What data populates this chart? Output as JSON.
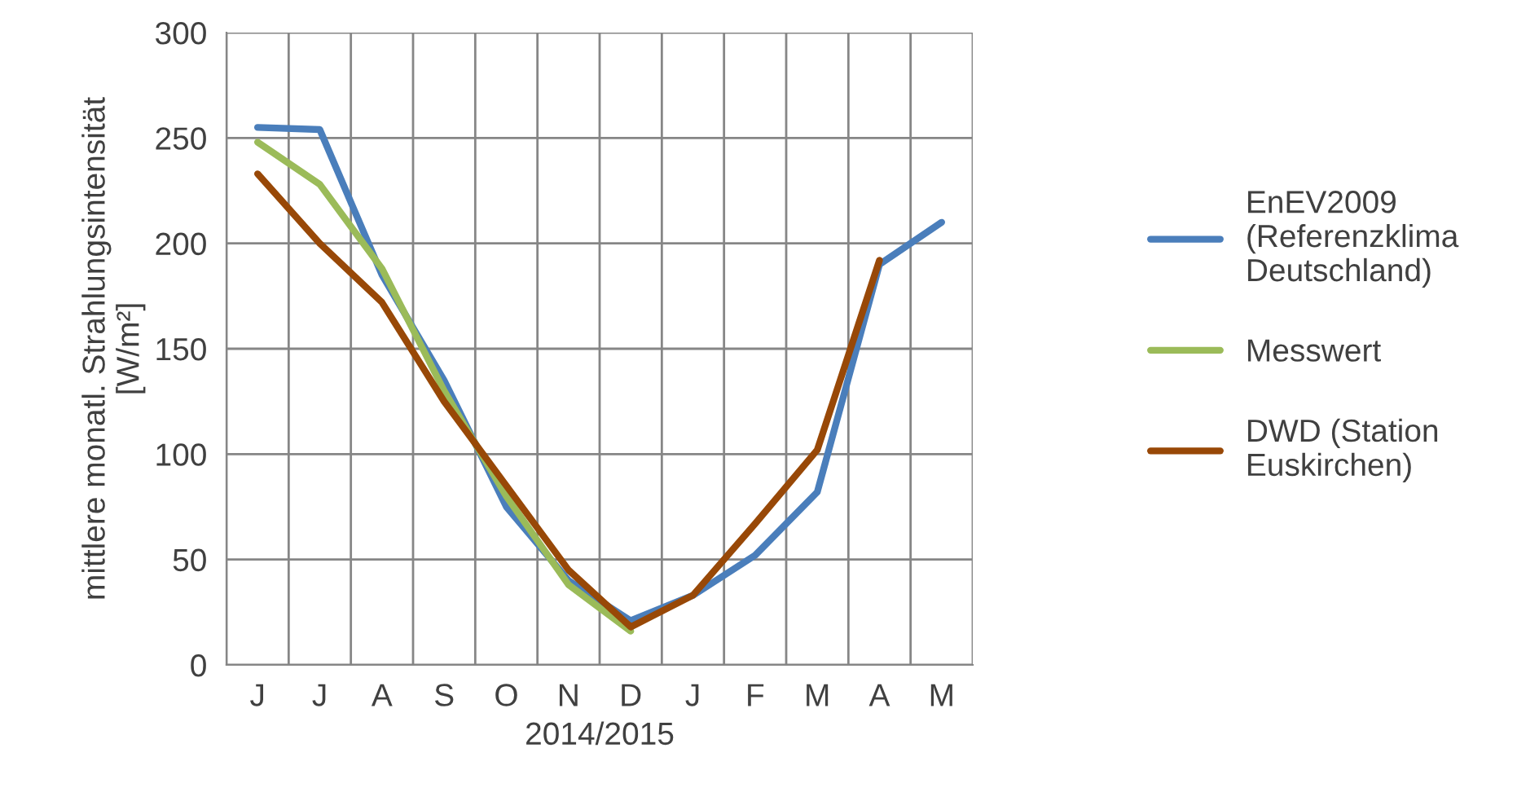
{
  "chart_data": {
    "type": "line",
    "xlabel": "2014/2015",
    "ylabel": "mittlere monatl. Strahlungsintensität\n[W/m²]",
    "categories": [
      "J",
      "J",
      "A",
      "S",
      "O",
      "N",
      "D",
      "J",
      "F",
      "M",
      "A",
      "M"
    ],
    "series": [
      {
        "name": "EnEV2009\n(Referenzklima\nDeutschland)",
        "color": "#4a7ebb",
        "values": [
          255,
          254,
          185,
          135,
          75,
          40,
          21,
          33,
          52,
          82,
          190,
          210
        ]
      },
      {
        "name": "Messwert",
        "color": "#9bbb59",
        "values": [
          248,
          228,
          188,
          130,
          80,
          38,
          16,
          null,
          null,
          null,
          null,
          null
        ]
      },
      {
        "name": "DWD (Station\nEuskirchen)",
        "color": "#984807",
        "values": [
          233,
          200,
          172,
          125,
          85,
          45,
          18,
          33,
          67,
          102,
          192,
          null
        ]
      }
    ],
    "ylim": [
      0,
      300
    ],
    "yticks": [
      0,
      50,
      100,
      150,
      200,
      250,
      300
    ],
    "grid": true,
    "legend": "right",
    "marker": "none",
    "line_style": "solid"
  }
}
